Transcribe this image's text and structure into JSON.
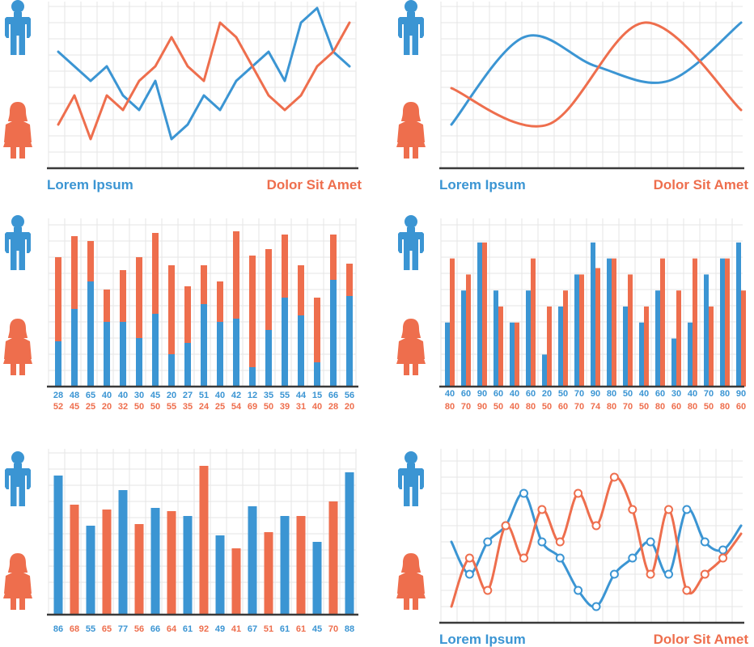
{
  "colors": {
    "blue": "#3b95d3",
    "orange": "#ee6e4d",
    "grid": "#e6e6e6",
    "axis": "#3a3a3a"
  },
  "icons": {
    "male": "man-silhouette-icon",
    "female": "woman-silhouette-icon"
  },
  "chart_data": [
    {
      "type": "line",
      "grid": true,
      "legend_left": "Lorem Ipsum",
      "legend_right": "Dolor Sit Amet",
      "ylim": [
        0,
        100
      ],
      "series": [
        {
          "color": "blue",
          "values": [
            70,
            60,
            50,
            60,
            40,
            30,
            50,
            10,
            20,
            40,
            30,
            50,
            60,
            70,
            50,
            90,
            100,
            70,
            60
          ]
        },
        {
          "color": "orange",
          "values": [
            20,
            40,
            10,
            40,
            30,
            50,
            60,
            80,
            60,
            50,
            90,
            80,
            60,
            40,
            30,
            40,
            60,
            70,
            90
          ]
        }
      ]
    },
    {
      "type": "line",
      "smooth": true,
      "grid": true,
      "legend_left": "Lorem Ipsum",
      "legend_right": "Dolor Sit Amet",
      "ylim": [
        0,
        100
      ],
      "series": [
        {
          "color": "blue",
          "values": [
            20,
            80,
            60,
            50,
            90
          ]
        },
        {
          "color": "orange",
          "values": [
            45,
            20,
            90,
            30
          ]
        }
      ]
    },
    {
      "type": "bar",
      "stacked": true,
      "grid": true,
      "ylim": [
        0,
        100
      ],
      "series": [
        {
          "color": "blue",
          "values": [
            28,
            48,
            65,
            40,
            40,
            30,
            45,
            20,
            27,
            51,
            40,
            42,
            12,
            35,
            55,
            44,
            15,
            66,
            56
          ]
        },
        {
          "color": "orange",
          "values": [
            52,
            45,
            25,
            20,
            32,
            50,
            50,
            55,
            35,
            24,
            25,
            54,
            69,
            50,
            39,
            31,
            40,
            28,
            20
          ]
        }
      ]
    },
    {
      "type": "bar",
      "grouped": true,
      "grid": true,
      "ylim": [
        0,
        100
      ],
      "series": [
        {
          "color": "blue",
          "values": [
            40,
            60,
            90,
            60,
            40,
            60,
            20,
            50,
            70,
            90,
            80,
            50,
            40,
            60,
            30,
            40,
            70,
            80,
            90
          ]
        },
        {
          "color": "orange",
          "values": [
            80,
            70,
            90,
            50,
            40,
            80,
            50,
            60,
            70,
            74,
            80,
            70,
            50,
            80,
            60,
            80,
            50,
            80,
            60
          ]
        }
      ]
    },
    {
      "type": "bar",
      "grid": true,
      "ylim": [
        0,
        100
      ],
      "colors": [
        "blue",
        "orange",
        "blue",
        "orange",
        "blue",
        "orange",
        "blue",
        "orange",
        "blue",
        "orange",
        "blue",
        "orange",
        "blue",
        "orange",
        "blue",
        "orange",
        "blue",
        "orange",
        "blue"
      ],
      "values": [
        86,
        68,
        55,
        65,
        77,
        56,
        66,
        64,
        61,
        92,
        49,
        41,
        67,
        51,
        61,
        61,
        45,
        70,
        88
      ]
    },
    {
      "type": "line",
      "smooth": true,
      "markers": true,
      "grid": true,
      "legend_left": "Lorem Ipsum",
      "legend_right": "Dolor Sit Amet",
      "ylim": [
        0,
        100
      ],
      "series": [
        {
          "color": "blue",
          "values": [
            50,
            30,
            50,
            60,
            80,
            50,
            40,
            20,
            10,
            30,
            40,
            50,
            30,
            70,
            50,
            45,
            60
          ]
        },
        {
          "color": "orange",
          "values": [
            10,
            40,
            20,
            60,
            40,
            70,
            50,
            80,
            60,
            90,
            70,
            30,
            70,
            20,
            30,
            40,
            55
          ]
        }
      ]
    }
  ]
}
